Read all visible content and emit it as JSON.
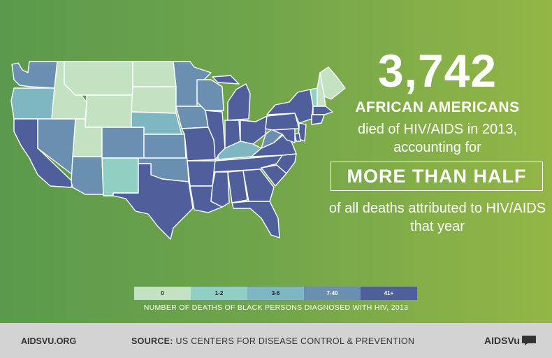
{
  "headline": {
    "number": "3,742",
    "group": "AFRICAN AMERICANS",
    "body_1": "died of HIV/AIDS in 2013, accounting for",
    "emphasis": "MORE THAN HALF",
    "body_2": "of all deaths attributed to HIV/AIDS that year"
  },
  "legend": {
    "title": "NUMBER OF DEATHS OF BLACK PERSONS DIAGNOSED WITH HIV, 2013",
    "bins": [
      {
        "label": "0",
        "color": "#c3e2c1"
      },
      {
        "label": "1-2",
        "color": "#91cfc3"
      },
      {
        "label": "3-6",
        "color": "#7eb6c2"
      },
      {
        "label": "7-40",
        "color": "#6b8fb0"
      },
      {
        "label": "41+",
        "color": "#4f5f9b"
      }
    ]
  },
  "states": {
    "WA": "7-40",
    "OR": "3-6",
    "CA": "41+",
    "NV": "7-40",
    "ID": "0",
    "MT": "0",
    "WY": "0",
    "UT": "0",
    "AZ": "7-40",
    "CO": "7-40",
    "NM": "1-2",
    "ND": "0",
    "SD": "0",
    "NE": "3-6",
    "KS": "7-40",
    "OK": "7-40",
    "TX": "41+",
    "MN": "7-40",
    "IA": "7-40",
    "MO": "41+",
    "AR": "41+",
    "LA": "41+",
    "WI": "7-40",
    "IL": "41+",
    "MI": "41+",
    "IN": "41+",
    "OH": "41+",
    "KY": "3-6",
    "TN": "41+",
    "MS": "41+",
    "AL": "41+",
    "GA": "41+",
    "FL": "41+",
    "SC": "41+",
    "NC": "41+",
    "VA": "41+",
    "WV": "7-40",
    "PA": "41+",
    "NY": "41+",
    "ME": "0",
    "VT": "1-2",
    "NH": "0",
    "MA": "41+",
    "CT": "41+",
    "NJ": "41+",
    "DE": "41+",
    "MD": "41+"
  },
  "footer": {
    "site": "AIDSVU.ORG",
    "source_label": "SOURCE:",
    "source_text": "US CENTERS FOR DISEASE CONTROL & PREVENTION",
    "logo": "AIDSVu"
  }
}
